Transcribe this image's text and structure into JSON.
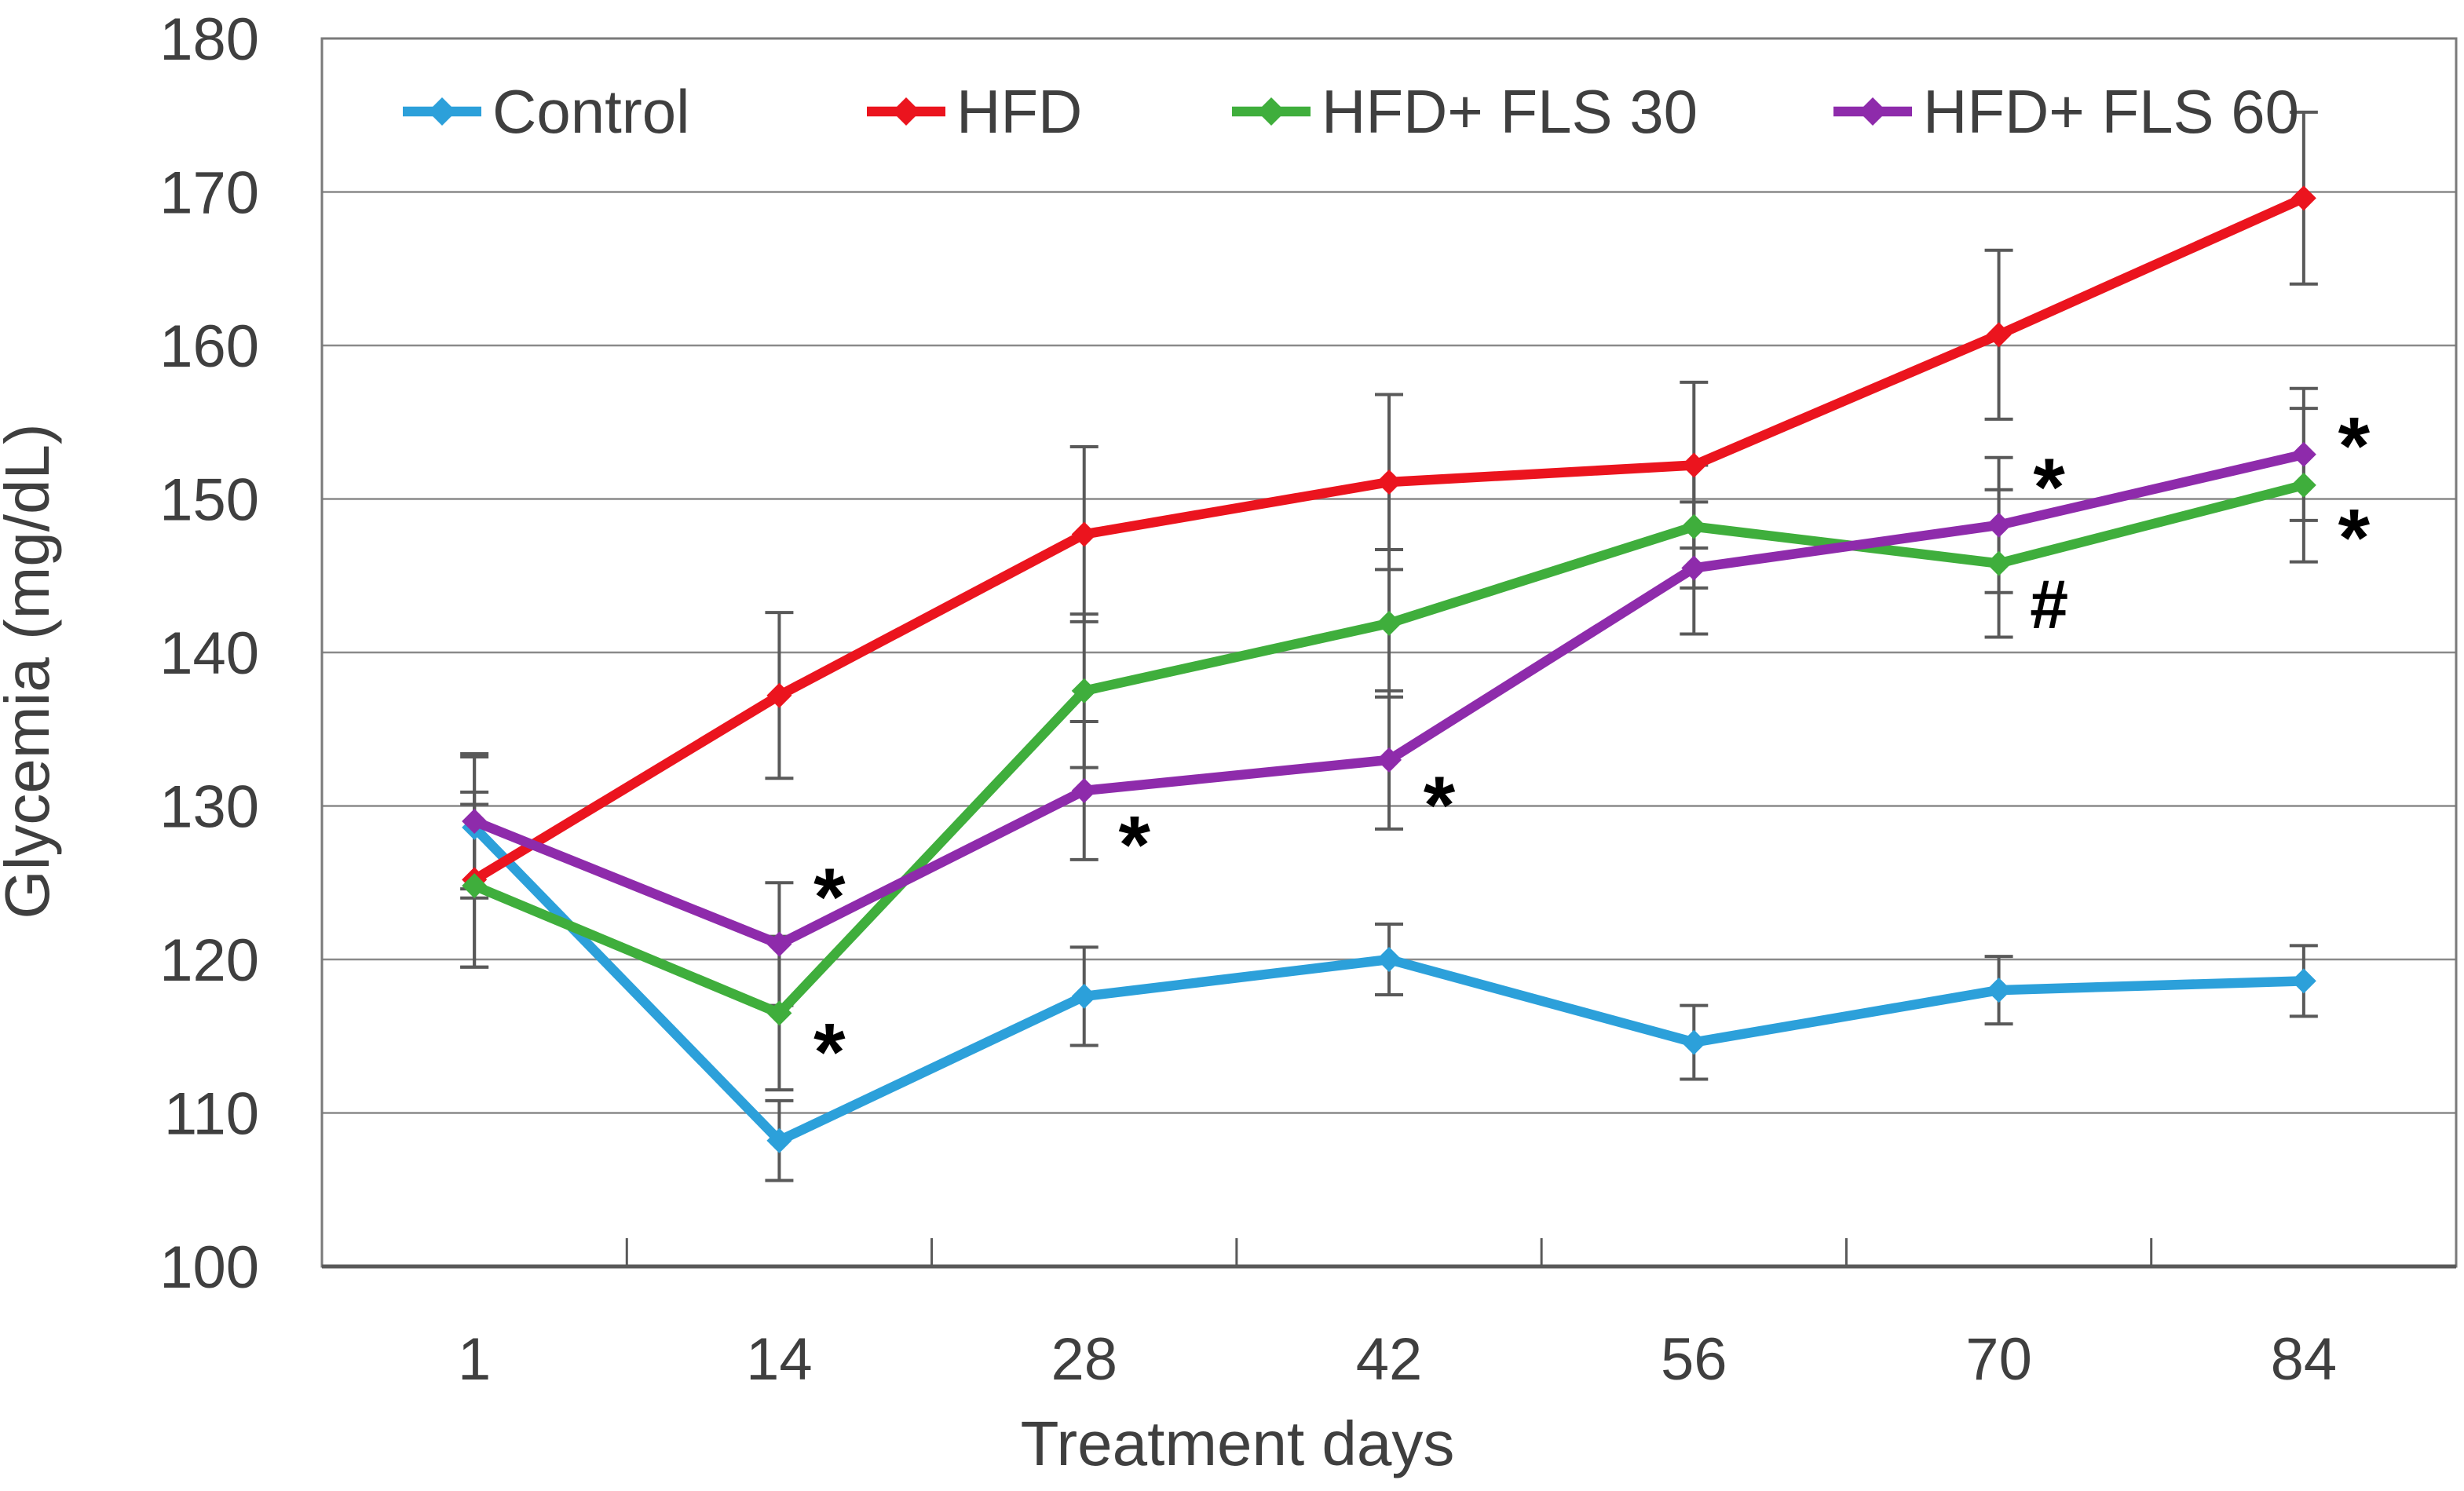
{
  "figure": {
    "background": "#FFFFFF"
  },
  "chart_data": {
    "type": "line",
    "title": "",
    "xlabel": "Treatment days",
    "ylabel": "Glycemia (mg/dL)",
    "categories": [
      "1",
      "14",
      "28",
      "42",
      "56",
      "70",
      "84"
    ],
    "ylim": [
      100,
      180
    ],
    "ytick_step": 10,
    "y_ticks": [
      "100",
      "110",
      "120",
      "130",
      "140",
      "150",
      "160",
      "170",
      "180"
    ],
    "grid": "horizontal-only",
    "legend_position": "top-inside-row",
    "series": [
      {
        "name": "Control",
        "color": "#2CA0DA",
        "marker": "diamond",
        "values": [
          128.6,
          108.2,
          117.6,
          120.0,
          114.6,
          118.0,
          118.6
        ],
        "errors": [
          4.6,
          2.6,
          3.2,
          2.3,
          2.4,
          2.2,
          2.3
        ]
      },
      {
        "name": "HFD",
        "color": "#EB141E",
        "marker": "diamond",
        "values": [
          125.2,
          137.2,
          147.7,
          151.1,
          152.2,
          160.7,
          169.6
        ],
        "errors": [
          5.7,
          5.4,
          5.7,
          5.7,
          5.4,
          5.5,
          5.6
        ]
      },
      {
        "name": "HFD+ FLS 30",
        "color": "#3FAE3C",
        "marker": "diamond",
        "values": [
          124.8,
          116.5,
          137.5,
          141.9,
          148.2,
          145.8,
          150.9
        ],
        "errors": [
          5.3,
          5.0,
          5.0,
          4.8,
          4.0,
          4.8,
          5.0
        ]
      },
      {
        "name": "HFD+ FLS 60",
        "color": "#8E2BAB",
        "marker": "diamond",
        "values": [
          129.0,
          121.0,
          131.0,
          133.0,
          145.5,
          148.3,
          152.9
        ],
        "errors": [
          4.4,
          4.0,
          4.5,
          4.5,
          4.3,
          4.4,
          4.3
        ]
      }
    ],
    "annotations": [
      {
        "category_index": 1,
        "value": 124.9,
        "text": "*"
      },
      {
        "category_index": 1,
        "value": 114.8,
        "text": "*"
      },
      {
        "category_index": 2,
        "value": 128.3,
        "text": "*"
      },
      {
        "category_index": 3,
        "value": 130.9,
        "text": "*"
      },
      {
        "category_index": 5,
        "value": 151.6,
        "text": "*"
      },
      {
        "category_index": 5,
        "value": 143.2,
        "text": "#"
      },
      {
        "category_index": 6,
        "value": 154.3,
        "text": "*"
      },
      {
        "category_index": 6,
        "value": 148.3,
        "text": "*"
      }
    ],
    "colors": {
      "gridline": "#8A8A8A",
      "plot_border": "#7A7A7A",
      "axis_line": "#595959",
      "error_bar": "#595959",
      "tick_mark": "#595959",
      "text": "#3F3F3F",
      "annotation_text": "#000000"
    }
  }
}
